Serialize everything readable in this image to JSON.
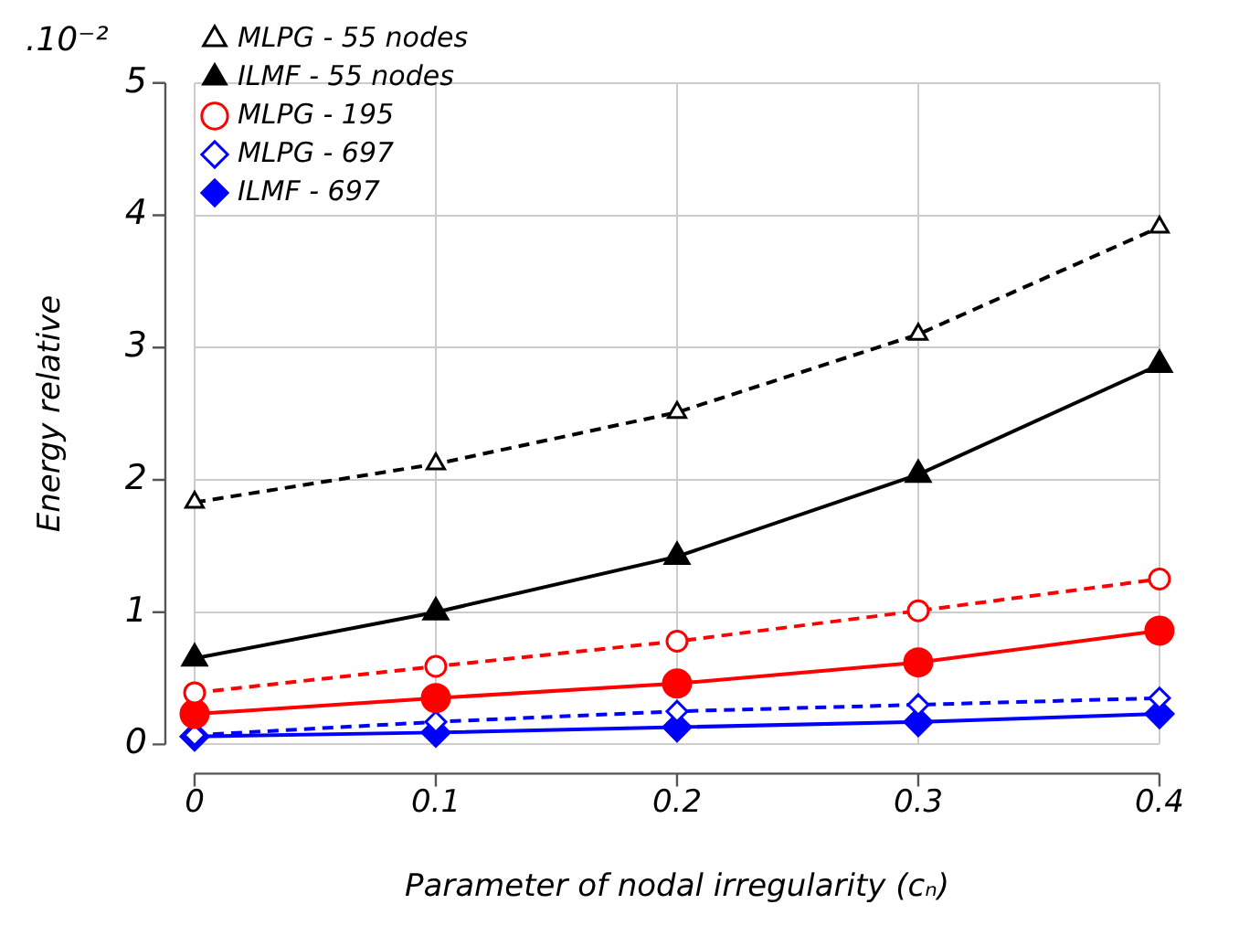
{
  "chart_data": {
    "type": "line",
    "xlabel": "Parameter of nodal irregularity (cₙ)",
    "ylabel": "Energy relative",
    "annotations": [
      ".10⁻²"
    ],
    "x": [
      0,
      0.1,
      0.2,
      0.3,
      0.4
    ],
    "xlim": [
      0,
      0.4
    ],
    "xticks": [
      0,
      0.1,
      0.2,
      0.3,
      0.4
    ],
    "ylim": [
      0,
      5
    ],
    "yticks": [
      0,
      1,
      2,
      3,
      4,
      5
    ],
    "grid": true,
    "legend": "top left",
    "series": [
      {
        "name": "MLPG - 55 nodes",
        "color": "#000000",
        "values": [
          1.83,
          2.12,
          2.51,
          3.1,
          3.91
        ],
        "marker": "triangle",
        "line_style": "dashed"
      },
      {
        "name": "ILMF - 55 nodes",
        "color": "#000000",
        "values": [
          0.65,
          1.0,
          1.42,
          2.04,
          2.87
        ],
        "marker": "triangle",
        "line_style": "solid"
      },
      {
        "name": "MLPG - 195",
        "color": "#ff0000",
        "values": [
          0.39,
          0.59,
          0.78,
          1.01,
          1.25
        ],
        "marker": "circle",
        "line_style": "dashed"
      },
      {
        "color": "#ff0000",
        "values": [
          0.23,
          0.35,
          0.46,
          0.62,
          0.86
        ],
        "marker": "circle",
        "line_style": "solid"
      },
      {
        "name": "MLPG - 697",
        "color": "#0000ff",
        "values": [
          0.07,
          0.17,
          0.25,
          0.3,
          0.35
        ],
        "marker": "diamond",
        "line_style": "dashed"
      },
      {
        "name": "ILMF - 697",
        "color": "#0000ff",
        "values": [
          0.06,
          0.09,
          0.13,
          0.17,
          0.23
        ],
        "marker": "diamond",
        "line_style": "solid"
      }
    ]
  }
}
